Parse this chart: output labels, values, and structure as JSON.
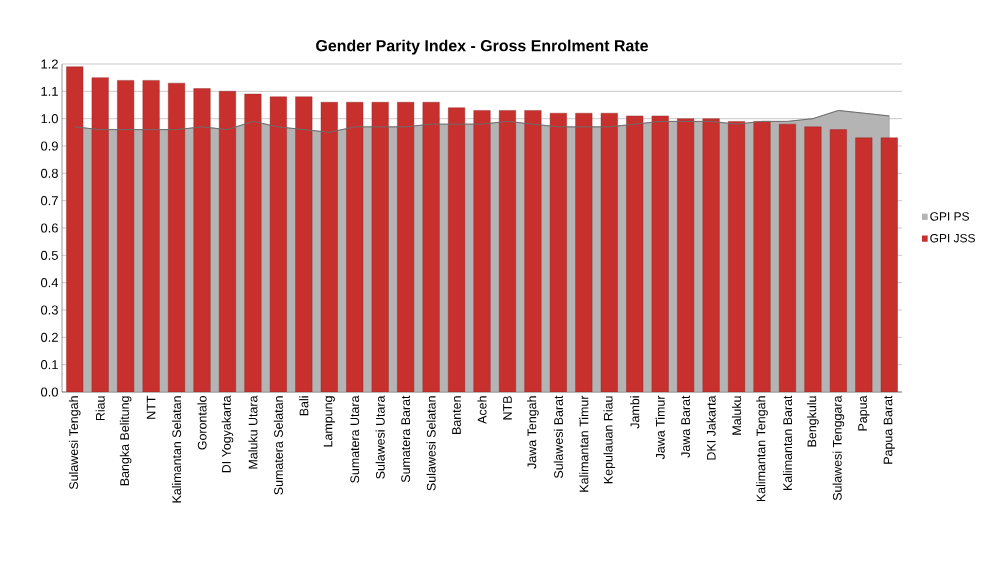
{
  "chart_data": {
    "type": "bar",
    "title": "Gender Parity Index - Gross Enrolment Rate",
    "categories": [
      "Sulawesi Tengah",
      "Riau",
      "Bangka Belitung",
      "NTT",
      "Kalimantan Selatan",
      "Gorontalo",
      "DI Yogyakarta",
      "Maluku Utara",
      "Sumatera Selatan",
      "Bali",
      "Lampung",
      "Sumatera Utara",
      "Sulawesi Utara",
      "Sumatera Barat",
      "Sulawesi Selatan",
      "Banten",
      "Aceh",
      "NTB",
      "Jawa Tengah",
      "Sulawesi Barat",
      "Kalimantan Timur",
      "Kepulauan Riau",
      "Jambi",
      "Jawa Timur",
      "Jawa Barat",
      "DKI Jakarta",
      "Maluku",
      "Kalimantan Tengah",
      "Kalimantan Barat",
      "Bengkulu",
      "Sulawesi Tenggara",
      "Papua",
      "Papua Barat"
    ],
    "series": [
      {
        "name": "GPI PS",
        "type": "area",
        "color": "#b4b4b4",
        "values": [
          0.97,
          0.96,
          0.96,
          0.96,
          0.96,
          0.97,
          0.96,
          0.99,
          0.97,
          0.96,
          0.95,
          0.97,
          0.97,
          0.97,
          0.98,
          0.98,
          0.98,
          0.99,
          0.98,
          0.97,
          0.97,
          0.97,
          0.98,
          0.99,
          0.99,
          0.99,
          0.98,
          0.99,
          0.99,
          1.0,
          1.03,
          1.02,
          1.01
        ]
      },
      {
        "name": "GPI JSS",
        "color": "#c8302e",
        "values": [
          1.19,
          1.15,
          1.14,
          1.14,
          1.13,
          1.11,
          1.1,
          1.09,
          1.08,
          1.08,
          1.06,
          1.06,
          1.06,
          1.06,
          1.06,
          1.04,
          1.03,
          1.03,
          1.03,
          1.02,
          1.02,
          1.02,
          1.01,
          1.01,
          1.0,
          1.0,
          0.99,
          0.99,
          0.98,
          0.97,
          0.96,
          0.93,
          0.93
        ]
      }
    ],
    "ylim": [
      0,
      1.2
    ],
    "yticks": [
      {
        "value": 0,
        "label": "0.0"
      },
      {
        "value": 0.1,
        "label": "0.1"
      },
      {
        "value": 0.2,
        "label": "0.2"
      },
      {
        "value": 0.3,
        "label": "0.3"
      },
      {
        "value": 0.4,
        "label": "0.4"
      },
      {
        "value": 0.5,
        "label": "0.5"
      },
      {
        "value": 0.6,
        "label": "0.6"
      },
      {
        "value": 0.7,
        "label": "0.7"
      },
      {
        "value": 0.8,
        "label": "0.8"
      },
      {
        "value": 0.9,
        "label": "0.9"
      },
      {
        "value": 1.0,
        "label": "1.0"
      },
      {
        "value": 1.1,
        "label": "1.1"
      },
      {
        "value": 1.2,
        "label": "1.2"
      }
    ],
    "grid": "y",
    "legend": "right"
  }
}
